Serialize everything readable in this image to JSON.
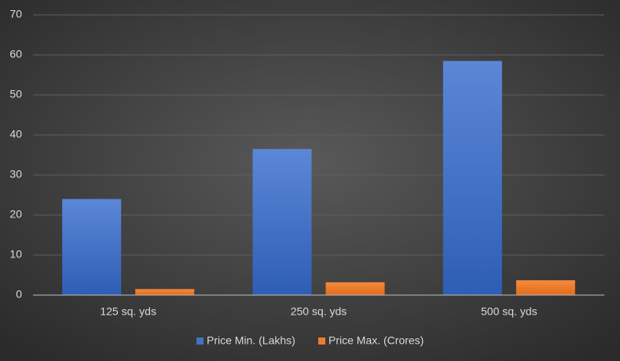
{
  "chart_data": {
    "type": "bar",
    "categories": [
      "125 sq. yds",
      "250 sq. yds",
      "500 sq. yds"
    ],
    "series": [
      {
        "name": "Price Min. (Lakhs)",
        "color": "#4472c4",
        "values": [
          24,
          36.5,
          58.5
        ]
      },
      {
        "name": "Price Max. (Crores)",
        "color": "#ed7d31",
        "values": [
          1.5,
          3.2,
          3.7
        ]
      }
    ],
    "ylim": [
      0,
      70
    ],
    "yticks": [
      0,
      10,
      20,
      30,
      40,
      50,
      60,
      70
    ],
    "grid": true,
    "legend": "bottom"
  }
}
